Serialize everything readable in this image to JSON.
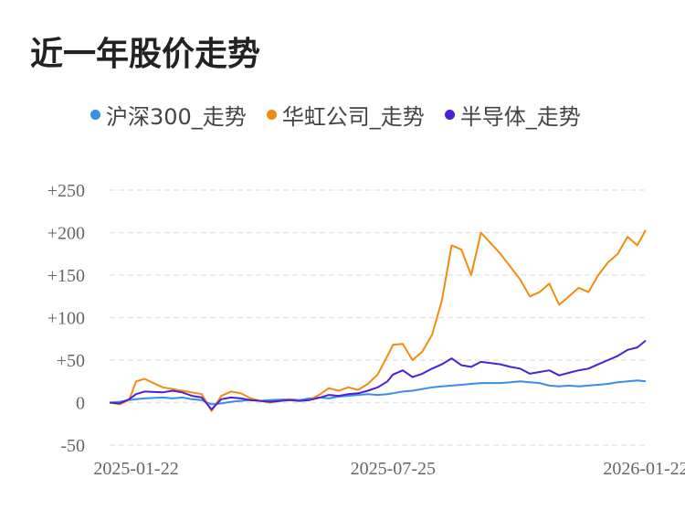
{
  "title": "近一年股价走势",
  "colors": {
    "hs300": "#3a8ee6",
    "huahong": "#f28c0f",
    "semi": "#4a20d8",
    "grid": "#e6e6e6"
  },
  "chart_data": {
    "type": "line",
    "title": "近一年股价走势",
    "x": [
      "2025-01-03",
      "2025-01-10",
      "2025-01-17",
      "2025-01-22",
      "2025-01-28",
      "2025-02-10",
      "2025-02-17",
      "2025-02-24",
      "2025-03-03",
      "2025-03-10",
      "2025-03-17",
      "2025-03-24",
      "2025-03-31",
      "2025-04-07",
      "2025-04-14",
      "2025-04-21",
      "2025-04-28",
      "2025-05-12",
      "2025-05-19",
      "2025-05-26",
      "2025-06-03",
      "2025-06-09",
      "2025-06-16",
      "2025-06-23",
      "2025-06-30",
      "2025-07-07",
      "2025-07-14",
      "2025-07-21",
      "2025-07-25",
      "2025-08-01",
      "2025-08-08",
      "2025-08-15",
      "2025-08-22",
      "2025-08-29",
      "2025-09-05",
      "2025-09-12",
      "2025-09-19",
      "2025-09-26",
      "2025-10-10",
      "2025-10-17",
      "2025-10-24",
      "2025-10-31",
      "2025-11-07",
      "2025-11-14",
      "2025-11-21",
      "2025-11-28",
      "2025-12-05",
      "2025-12-12",
      "2025-12-19",
      "2025-12-26",
      "2026-01-02",
      "2026-01-09",
      "2026-01-16",
      "2026-01-22"
    ],
    "xticks": [
      "2025-01-22",
      "2025-07-25",
      "2026-01-22"
    ],
    "yticks": [
      "+250",
      "+200",
      "+150",
      "+100",
      "+50",
      "0",
      "-50"
    ],
    "ylim": [
      -50,
      250
    ],
    "series": [
      {
        "name": "沪深300_走势",
        "color": "#3a8ee6",
        "values": [
          0,
          1,
          3,
          4,
          5,
          6,
          5,
          6,
          4,
          3,
          -2,
          -1,
          1,
          2,
          3,
          2,
          3,
          4,
          3,
          5,
          6,
          5,
          7,
          8,
          9,
          10,
          9,
          10,
          11,
          13,
          14,
          16,
          18,
          19,
          20,
          21,
          22,
          23,
          23,
          24,
          25,
          24,
          23,
          20,
          19,
          20,
          19,
          20,
          21,
          22,
          24,
          25,
          26,
          25
        ]
      },
      {
        "name": "华虹公司_走势",
        "color": "#f28c0f",
        "values": [
          0,
          -2,
          3,
          25,
          28,
          18,
          16,
          14,
          12,
          10,
          -10,
          8,
          13,
          11,
          5,
          2,
          0,
          4,
          2,
          3,
          10,
          17,
          14,
          18,
          15,
          22,
          33,
          55,
          68,
          69,
          50,
          60,
          80,
          120,
          185,
          180,
          150,
          200,
          175,
          160,
          145,
          125,
          130,
          140,
          115,
          125,
          135,
          130,
          150,
          165,
          175,
          195,
          185,
          203
        ]
      },
      {
        "name": "半导体_走势",
        "color": "#4a20d8",
        "values": [
          0,
          -1,
          4,
          10,
          13,
          12,
          14,
          12,
          8,
          6,
          -8,
          4,
          6,
          5,
          3,
          2,
          1,
          3,
          2,
          3,
          6,
          9,
          8,
          10,
          11,
          14,
          18,
          25,
          33,
          38,
          30,
          34,
          40,
          45,
          52,
          44,
          42,
          48,
          45,
          42,
          40,
          34,
          36,
          38,
          32,
          35,
          38,
          40,
          45,
          50,
          55,
          62,
          65,
          73
        ]
      }
    ]
  }
}
